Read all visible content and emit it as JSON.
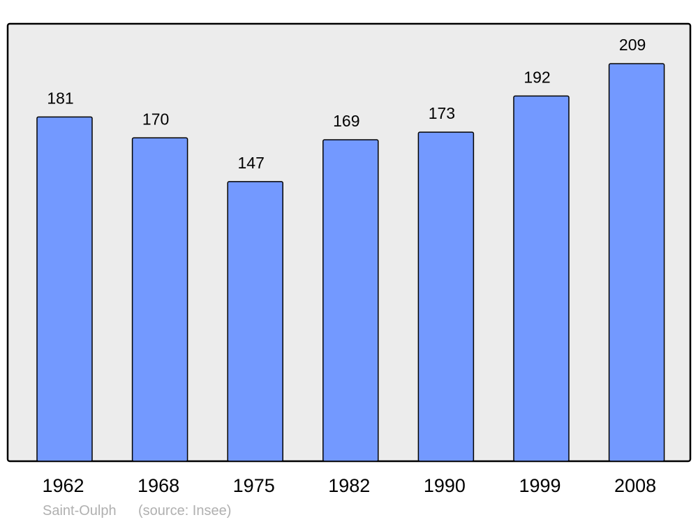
{
  "chart_data": {
    "type": "bar",
    "categories": [
      "1962",
      "1968",
      "1975",
      "1982",
      "1990",
      "1999",
      "2008"
    ],
    "values": [
      181,
      170,
      147,
      169,
      173,
      192,
      209
    ],
    "title": "",
    "xlabel": "",
    "ylabel": "",
    "ylim": [
      0,
      230
    ],
    "grid": false,
    "data_labels": true,
    "colors": {
      "bar": "#7399ff",
      "plot_background": "#ececec",
      "border": "#000000",
      "footer_text": "#b0b0b0"
    }
  },
  "footer": {
    "place": "Saint-Oulph",
    "source": "(source: Insee)"
  }
}
